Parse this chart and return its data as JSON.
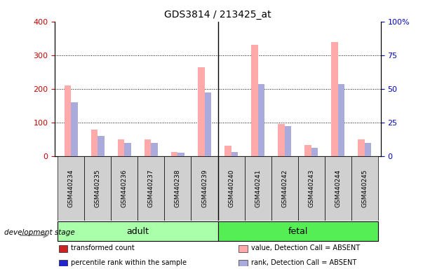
{
  "title": "GDS3814 / 213425_at",
  "samples": [
    "GSM440234",
    "GSM440235",
    "GSM440236",
    "GSM440237",
    "GSM440238",
    "GSM440239",
    "GSM440240",
    "GSM440241",
    "GSM440242",
    "GSM440243",
    "GSM440244",
    "GSM440245"
  ],
  "absent_count": [
    210,
    78,
    50,
    50,
    12,
    265,
    30,
    330,
    95,
    33,
    338,
    50
  ],
  "absent_rank": [
    40,
    15,
    9.5,
    9.5,
    2.5,
    47.5,
    3,
    53.75,
    22.5,
    6.25,
    53.75,
    9.5
  ],
  "ylim_left": [
    0,
    400
  ],
  "ylim_right": [
    0,
    100
  ],
  "yticks_left": [
    0,
    100,
    200,
    300,
    400
  ],
  "yticks_right": [
    0,
    25,
    50,
    75,
    100
  ],
  "color_absent_count": "#ffaaaa",
  "color_absent_rank": "#aaaadd",
  "color_present_count": "#cc2222",
  "color_present_rank": "#2222cc",
  "adult_color": "#aaffaa",
  "fetal_color": "#55ee55",
  "adult_samples": 6,
  "fetal_samples": 6,
  "tick_color_left": "#cc0000",
  "tick_color_right": "#0000cc",
  "legend_items": [
    {
      "label": "transformed count",
      "color": "#cc2222"
    },
    {
      "label": "percentile rank within the sample",
      "color": "#2222cc"
    },
    {
      "label": "value, Detection Call = ABSENT",
      "color": "#ffaaaa"
    },
    {
      "label": "rank, Detection Call = ABSENT",
      "color": "#aaaadd"
    }
  ],
  "background_color": "#ffffff",
  "group_label": "development stage"
}
